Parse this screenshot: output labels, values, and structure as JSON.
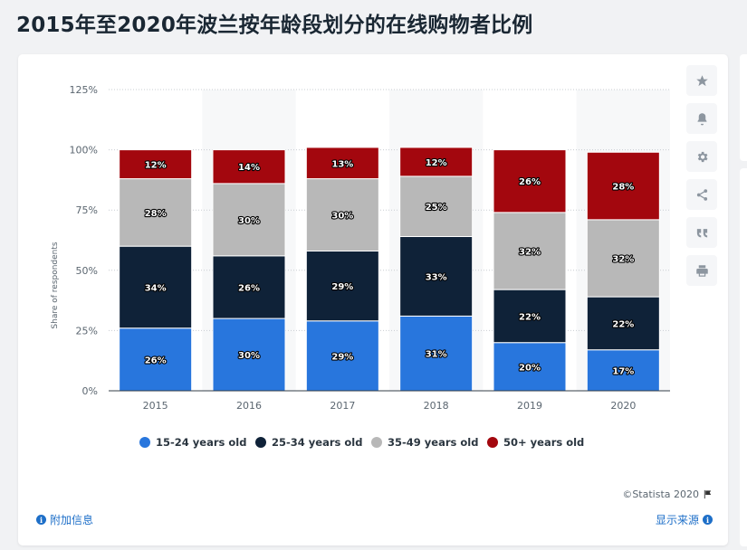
{
  "page": {
    "title": "2015年至2020年波兰按年龄段划分的在线购物者比例"
  },
  "toolbar": {
    "icons": [
      "star-icon",
      "bell-icon",
      "gear-icon",
      "share-icon",
      "quote-icon",
      "print-icon"
    ]
  },
  "footer": {
    "credit": "©Statista 2020",
    "additional_info": "附加信息",
    "show_source": "显示来源"
  },
  "colors": {
    "accent": "#1e6fc8"
  },
  "chart_data": {
    "type": "bar",
    "stacked": true,
    "title": "2015年至2020年波兰按年龄段划分的在线购物者比例",
    "xlabel": "",
    "ylabel": "Share of respondents",
    "ylim": [
      0,
      125
    ],
    "yticks": [
      0,
      25,
      50,
      75,
      100,
      125
    ],
    "ytick_labels": [
      "0%",
      "25%",
      "50%",
      "75%",
      "100%",
      "125%"
    ],
    "categories": [
      "2015",
      "2016",
      "2017",
      "2018",
      "2019",
      "2020"
    ],
    "series": [
      {
        "name": "15-24 years old",
        "color": "#2876dd",
        "values": [
          26,
          30,
          29,
          31,
          20,
          17
        ],
        "labels": [
          "26%",
          "30%",
          "29%",
          "31%",
          "20%",
          "17%"
        ]
      },
      {
        "name": "25-34 years old",
        "color": "#0f2238",
        "values": [
          34,
          26,
          29,
          33,
          22,
          22
        ],
        "labels": [
          "34%",
          "26%",
          "29%",
          "33%",
          "22%",
          "22%"
        ]
      },
      {
        "name": "35-49 years old",
        "color": "#b8b8b8",
        "values": [
          28,
          30,
          30,
          25,
          32,
          32
        ],
        "labels": [
          "28%",
          "30%",
          "30%",
          "25%",
          "32%",
          "32%"
        ]
      },
      {
        "name": "50+ years old",
        "color": "#a3070e",
        "values": [
          12,
          14,
          13,
          12,
          26,
          28
        ],
        "labels": [
          "12%",
          "14%",
          "13%",
          "12%",
          "26%",
          "28%"
        ]
      }
    ],
    "legend_position": "bottom",
    "grid": true
  }
}
